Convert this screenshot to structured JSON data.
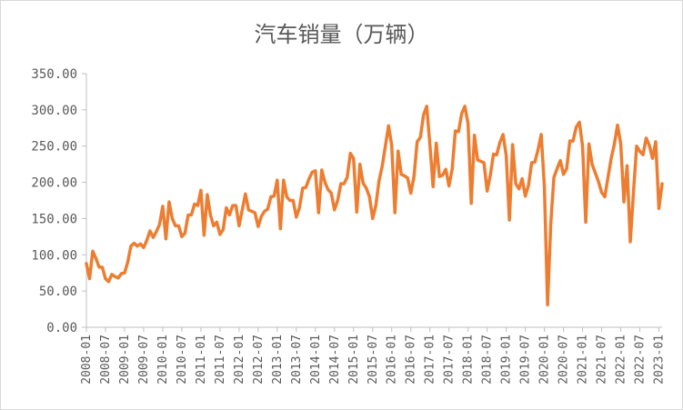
{
  "chart_data": {
    "type": "line",
    "title": "汽车销量（万辆）",
    "xlabel": "",
    "ylabel": "",
    "ylim": [
      0,
      350
    ],
    "y_ticks": [
      "0.00",
      "50.00",
      "100.00",
      "150.00",
      "200.00",
      "250.00",
      "300.00",
      "350.00"
    ],
    "x_ticks": [
      "2008-01",
      "2008-07",
      "2009-01",
      "2009-07",
      "2010-01",
      "2010-07",
      "2011-01",
      "2011-07",
      "2012-01",
      "2012-07",
      "2013-01",
      "2013-07",
      "2014-01",
      "2014-07",
      "2015-01",
      "2015-07",
      "2016-01",
      "2016-07",
      "2017-01",
      "2017-07",
      "2018-01",
      "2018-07",
      "2019-01",
      "2019-07",
      "2020-01",
      "2020-07",
      "2021-01",
      "2021-07",
      "2022-01",
      "2022-07",
      "2023-01"
    ],
    "series_color": "#ED7D31",
    "grid": false,
    "legend": "none",
    "series": [
      {
        "x_start": "2008-01",
        "frequency": "monthly",
        "values": [
          88,
          67,
          105,
          95,
          83,
          83,
          67,
          63,
          73,
          70,
          68,
          74,
          75,
          90,
          112,
          116,
          112,
          115,
          110,
          120,
          133,
          124,
          132,
          142,
          167,
          122,
          173,
          150,
          140,
          140,
          125,
          130,
          155,
          155,
          170,
          168,
          189,
          127,
          183,
          155,
          140,
          145,
          128,
          135,
          165,
          155,
          168,
          168,
          140,
          162,
          184,
          162,
          160,
          158,
          139,
          153,
          160,
          163,
          180,
          181,
          203,
          136,
          203,
          180,
          175,
          175,
          152,
          165,
          192,
          193,
          205,
          214,
          216,
          158,
          217,
          200,
          190,
          185,
          162,
          175,
          198,
          198,
          207,
          240,
          233,
          159,
          225,
          199,
          192,
          180,
          150,
          168,
          202,
          222,
          250,
          278,
          251,
          158,
          243,
          211,
          209,
          206,
          185,
          208,
          256,
          262,
          293,
          305,
          252,
          194,
          254,
          208,
          210,
          218,
          195,
          218,
          271,
          270,
          295,
          305,
          281,
          171,
          265,
          231,
          229,
          227,
          188,
          210,
          239,
          238,
          255,
          266,
          237,
          148,
          252,
          198,
          191,
          205,
          181,
          196,
          227,
          228,
          245,
          266,
          194,
          31,
          143,
          207,
          219,
          230,
          211,
          219,
          257,
          257,
          276,
          283,
          250,
          145,
          253,
          225,
          213,
          201,
          186,
          180,
          207,
          233,
          253,
          279,
          253,
          173,
          223,
          118,
          186,
          250,
          243,
          238,
          261,
          251,
          233,
          256,
          164,
          198
        ]
      }
    ]
  }
}
